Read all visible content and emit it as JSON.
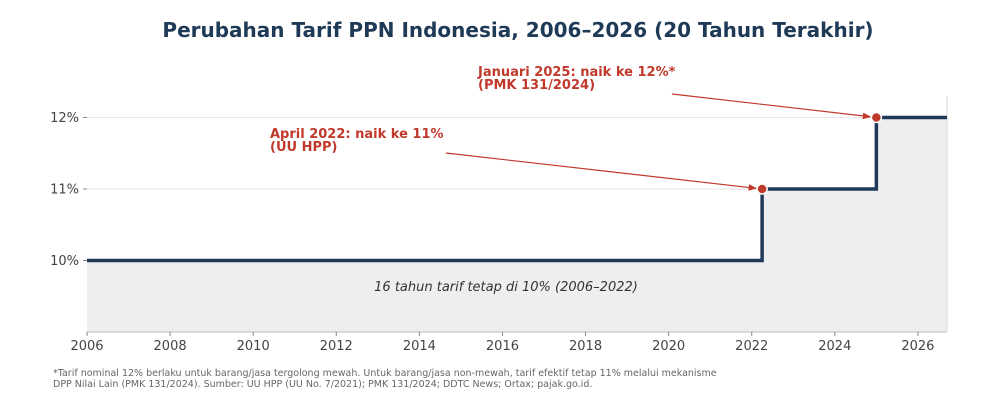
{
  "chart_data": {
    "type": "line",
    "step": "post",
    "title": "Perubahan Tarif PPN Indonesia, 2006–2026 (20 Tahun Terakhir)",
    "xlabel": "",
    "ylabel": "",
    "xlim": [
      2006,
      2026.7
    ],
    "ylim": [
      9,
      12.3
    ],
    "xticks": [
      2006,
      2008,
      2010,
      2012,
      2014,
      2016,
      2018,
      2020,
      2022,
      2024,
      2026
    ],
    "yticks": [
      {
        "value": 10,
        "label": "10%"
      },
      {
        "value": 11,
        "label": "11%"
      },
      {
        "value": 12,
        "label": "12%"
      }
    ],
    "grid": "horizontal",
    "series": [
      {
        "x": [
          2006,
          2022.25,
          2025.0,
          2026.7
        ],
        "y": [
          10,
          11,
          12,
          12
        ],
        "color": "#1f3a56"
      }
    ],
    "annotations": [
      {
        "x": 2022.25,
        "y": 11,
        "lines": [
          "April 2022: naik ke 11%",
          "(UU HPP)"
        ]
      },
      {
        "x": 2025.0,
        "y": 12,
        "lines": [
          "Januari 2025: naik ke 12%*",
          "(PMK 131/2024)"
        ]
      }
    ],
    "period_note": "16 tahun tarif tetap di 10% (2006–2022)",
    "footnote": [
      "*Tarif nominal 12% berlaku untuk barang/jasa tergolong mewah. Untuk barang/jasa non-mewah, tarif efektif tetap 11% melalui mekanisme",
      "DPP Nilai Lain (PMK 131/2024). Sumber: UU HPP (UU No. 7/2021); PMK 131/2024; DDTC News; Ortax; pajak.go.id."
    ],
    "colors": {
      "line": "#1f3a56",
      "marker": "#c0392b",
      "annotation": "#c0392b",
      "fill": "#eceef0",
      "grid": "#e6e6e6"
    }
  }
}
